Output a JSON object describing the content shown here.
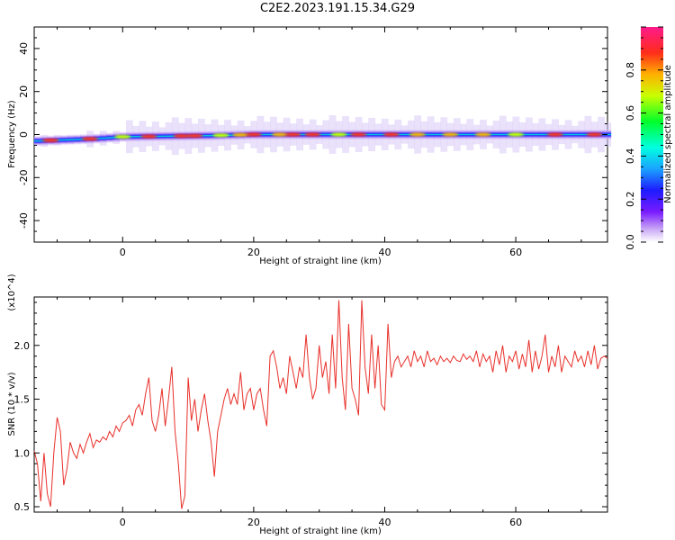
{
  "title": "C2E2.2023.191.15.34.G29",
  "chart_data": [
    {
      "type": "heatmap",
      "xlabel": "Height of straight line (km)",
      "ylabel": "Frequency (Hz)",
      "xlim": [
        -13.5,
        74
      ],
      "ylim": [
        -50,
        50
      ],
      "xticks": [
        0,
        20,
        40,
        60
      ],
      "yticks": [
        -40,
        -20,
        0,
        20,
        40
      ],
      "colorbar": {
        "label": "Normalized spectral amplitude",
        "range": [
          0,
          1
        ],
        "ticks": [
          "0.0",
          "0.2",
          "0.4",
          "0.6",
          "0.8"
        ],
        "colormap": "rainbow (white → violet → blue → cyan → green → yellow → orange → red → magenta)"
      },
      "ridge_frequency_hz": [
        {
          "height_km": -13.5,
          "freq_hz": -3
        },
        {
          "height_km": -5,
          "freq_hz": -2
        },
        {
          "height_km": 0,
          "freq_hz": -1
        },
        {
          "height_km": 13,
          "freq_hz": -0.5
        },
        {
          "height_km": 20,
          "freq_hz": 0
        },
        {
          "height_km": 74,
          "freq_hz": 0
        }
      ]
    },
    {
      "type": "line",
      "xlabel": "Height of straight line (km)",
      "ylabel": "SNR (10 * v/v)",
      "y_multiplier": "(x10^4)",
      "xlim": [
        -13.5,
        74
      ],
      "ylim": [
        0.45,
        2.45
      ],
      "xticks": [
        0,
        20,
        40,
        60
      ],
      "yticks": [
        "0.5",
        "1.0",
        "1.5",
        "2.0"
      ],
      "line_color": "#e8302a",
      "series": [
        {
          "points": [
            [
              -13.5,
              1.02
            ],
            [
              -13,
              0.9
            ],
            [
              -12.5,
              0.55
            ],
            [
              -12,
              1.0
            ],
            [
              -11.5,
              0.62
            ],
            [
              -11,
              0.5
            ],
            [
              -10.5,
              1.0
            ],
            [
              -10,
              1.33
            ],
            [
              -9.5,
              1.2
            ],
            [
              -9,
              0.7
            ],
            [
              -8.5,
              0.85
            ],
            [
              -8,
              1.1
            ],
            [
              -7.5,
              1.0
            ],
            [
              -7,
              0.95
            ],
            [
              -6.5,
              1.08
            ],
            [
              -6,
              1.0
            ],
            [
              -5.5,
              1.1
            ],
            [
              -5,
              1.18
            ],
            [
              -4.5,
              1.05
            ],
            [
              -4,
              1.12
            ],
            [
              -3.5,
              1.1
            ],
            [
              -3,
              1.15
            ],
            [
              -2.5,
              1.12
            ],
            [
              -2,
              1.2
            ],
            [
              -1.5,
              1.15
            ],
            [
              -1,
              1.25
            ],
            [
              -0.5,
              1.2
            ],
            [
              0,
              1.28
            ],
            [
              0.5,
              1.3
            ],
            [
              1,
              1.35
            ],
            [
              1.5,
              1.25
            ],
            [
              2,
              1.4
            ],
            [
              2.5,
              1.45
            ],
            [
              3,
              1.35
            ],
            [
              3.5,
              1.55
            ],
            [
              4,
              1.7
            ],
            [
              4.5,
              1.3
            ],
            [
              5,
              1.2
            ],
            [
              5.5,
              1.35
            ],
            [
              6,
              1.6
            ],
            [
              6.5,
              1.25
            ],
            [
              7,
              1.5
            ],
            [
              7.5,
              1.8
            ],
            [
              8,
              1.2
            ],
            [
              8.5,
              0.9
            ],
            [
              9,
              0.48
            ],
            [
              9.5,
              0.6
            ],
            [
              10,
              1.7
            ],
            [
              10.5,
              1.3
            ],
            [
              11,
              1.5
            ],
            [
              11.5,
              1.2
            ],
            [
              12,
              1.4
            ],
            [
              12.5,
              1.55
            ],
            [
              13,
              1.3
            ],
            [
              13.5,
              1.1
            ],
            [
              14,
              0.78
            ],
            [
              14.5,
              1.2
            ],
            [
              15,
              1.35
            ],
            [
              15.5,
              1.5
            ],
            [
              16,
              1.6
            ],
            [
              16.5,
              1.45
            ],
            [
              17,
              1.55
            ],
            [
              17.5,
              1.45
            ],
            [
              18,
              1.75
            ],
            [
              18.5,
              1.4
            ],
            [
              19,
              1.55
            ],
            [
              19.5,
              1.6
            ],
            [
              20,
              1.4
            ],
            [
              20.5,
              1.55
            ],
            [
              21,
              1.6
            ],
            [
              21.5,
              1.4
            ],
            [
              22,
              1.25
            ],
            [
              22.5,
              1.9
            ],
            [
              23,
              1.95
            ],
            [
              23.5,
              1.8
            ],
            [
              24,
              1.6
            ],
            [
              24.5,
              1.7
            ],
            [
              25,
              1.55
            ],
            [
              25.5,
              1.9
            ],
            [
              26,
              1.75
            ],
            [
              26.5,
              1.6
            ],
            [
              27,
              1.8
            ],
            [
              27.5,
              1.7
            ],
            [
              28,
              2.1
            ],
            [
              28.5,
              1.7
            ],
            [
              29,
              1.5
            ],
            [
              29.5,
              1.6
            ],
            [
              30,
              2.0
            ],
            [
              30.5,
              1.7
            ],
            [
              31,
              1.85
            ],
            [
              31.5,
              1.55
            ],
            [
              32,
              2.1
            ],
            [
              32.5,
              1.6
            ],
            [
              33,
              2.42
            ],
            [
              33.5,
              1.7
            ],
            [
              34,
              1.4
            ],
            [
              34.5,
              2.2
            ],
            [
              35,
              1.6
            ],
            [
              35.5,
              1.5
            ],
            [
              36,
              1.35
            ],
            [
              36.5,
              2.42
            ],
            [
              37,
              1.8
            ],
            [
              37.5,
              1.55
            ],
            [
              38,
              2.1
            ],
            [
              38.5,
              1.6
            ],
            [
              39,
              2.0
            ],
            [
              39.5,
              1.45
            ],
            [
              40,
              1.4
            ],
            [
              40.5,
              2.2
            ],
            [
              41,
              1.7
            ],
            [
              41.5,
              1.85
            ],
            [
              42,
              1.9
            ],
            [
              42.5,
              1.8
            ],
            [
              43,
              1.85
            ],
            [
              43.5,
              1.9
            ],
            [
              44,
              1.8
            ],
            [
              44.5,
              1.95
            ],
            [
              45,
              1.85
            ],
            [
              45.5,
              1.9
            ],
            [
              46,
              1.8
            ],
            [
              46.5,
              1.95
            ],
            [
              47,
              1.85
            ],
            [
              47.5,
              1.88
            ],
            [
              48,
              1.82
            ],
            [
              48.5,
              1.9
            ],
            [
              49,
              1.85
            ],
            [
              49.5,
              1.88
            ],
            [
              50,
              1.84
            ],
            [
              50.5,
              1.9
            ],
            [
              51,
              1.86
            ],
            [
              51.5,
              1.85
            ],
            [
              52,
              1.92
            ],
            [
              52.5,
              1.87
            ],
            [
              53,
              1.9
            ],
            [
              53.5,
              1.85
            ],
            [
              54,
              1.95
            ],
            [
              54.5,
              1.8
            ],
            [
              55,
              1.92
            ],
            [
              55.5,
              1.85
            ],
            [
              56,
              1.9
            ],
            [
              56.5,
              1.75
            ],
            [
              57,
              1.95
            ],
            [
              57.5,
              1.82
            ],
            [
              58,
              2.0
            ],
            [
              58.5,
              1.75
            ],
            [
              59,
              1.9
            ],
            [
              59.5,
              1.85
            ],
            [
              60,
              1.95
            ],
            [
              60.5,
              1.78
            ],
            [
              61,
              1.92
            ],
            [
              61.5,
              1.8
            ],
            [
              62,
              2.05
            ],
            [
              62.5,
              1.75
            ],
            [
              63,
              1.95
            ],
            [
              63.5,
              1.78
            ],
            [
              64,
              1.9
            ],
            [
              64.5,
              2.1
            ],
            [
              65,
              1.75
            ],
            [
              65.5,
              1.9
            ],
            [
              66,
              1.8
            ],
            [
              66.5,
              2.0
            ],
            [
              67,
              1.75
            ],
            [
              67.5,
              1.9
            ],
            [
              68,
              1.85
            ],
            [
              68.5,
              1.8
            ],
            [
              69,
              1.95
            ],
            [
              69.5,
              1.85
            ],
            [
              70,
              1.9
            ],
            [
              70.5,
              1.8
            ],
            [
              71,
              1.95
            ],
            [
              71.5,
              1.82
            ],
            [
              72,
              2.0
            ],
            [
              72.5,
              1.78
            ],
            [
              73,
              1.88
            ],
            [
              73.5,
              1.9
            ],
            [
              74,
              1.88
            ]
          ]
        }
      ]
    }
  ]
}
